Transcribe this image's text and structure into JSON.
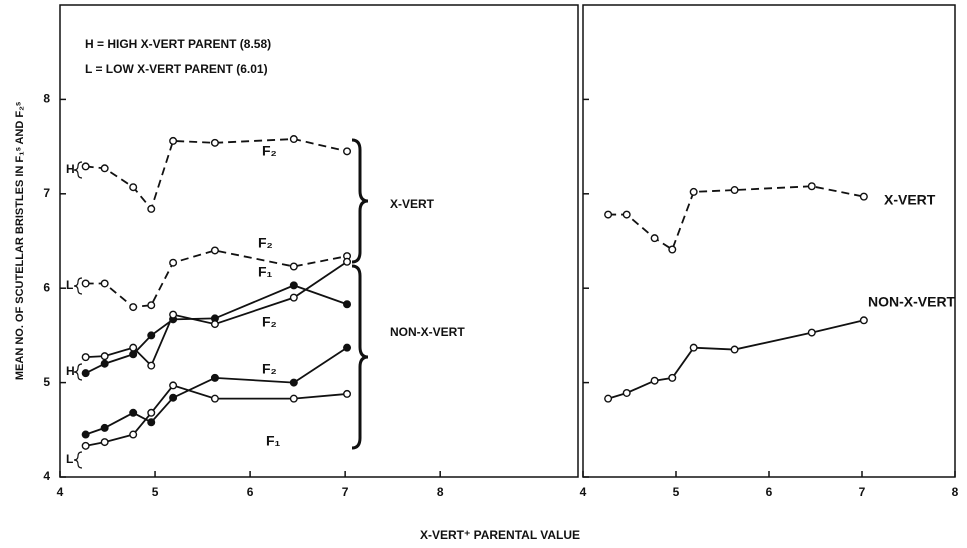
{
  "chart_data": [
    {
      "type": "line",
      "ylabel": "MEAN NO. OF SCUTELLAR BRISTLES IN F₁ˢ AND F₂ˢ",
      "xlabel": "X-VERT⁺ PARENTAL VALUE",
      "notes": [
        "H = HIGH X-VERT PARENT (8.58)",
        "L = LOW X-VERT PARENT (6.01)"
      ],
      "annotations": [
        "H",
        "L",
        "H",
        "L"
      ],
      "groups": [
        "X-VERT",
        "NON-X-VERT"
      ],
      "xlim": [
        4,
        9.45
      ],
      "xticks": [
        4,
        5,
        6,
        7,
        8
      ],
      "ylim": [
        4,
        9
      ],
      "yticks": [
        4,
        5,
        6,
        7,
        8
      ],
      "ytick_labels": true,
      "color": "#111111",
      "x": [
        4.27,
        4.47,
        4.77,
        4.96,
        5.19,
        5.63,
        6.46,
        7.02
      ],
      "series": [
        {
          "name": "F₂",
          "dashed": true,
          "marker": "open",
          "values": [
            7.29,
            7.27,
            7.07,
            6.84,
            7.56,
            7.54,
            7.58,
            7.45
          ]
        },
        {
          "name": "F₂",
          "dashed": true,
          "marker": "open",
          "values": [
            6.05,
            6.05,
            5.8,
            5.82,
            6.27,
            6.4,
            6.23,
            6.34
          ]
        },
        {
          "name": "F₁",
          "dashed": false,
          "marker": "filled",
          "values": [
            5.1,
            5.2,
            5.3,
            5.5,
            5.67,
            5.68,
            6.03,
            5.83
          ]
        },
        {
          "name": "F₂",
          "dashed": false,
          "marker": "open",
          "values": [
            5.27,
            5.28,
            5.37,
            5.18,
            5.72,
            5.62,
            5.9,
            6.28
          ]
        },
        {
          "name": "F₂",
          "dashed": false,
          "marker": "filled",
          "values": [
            4.45,
            4.52,
            4.68,
            4.58,
            4.84,
            5.05,
            5.0,
            5.37
          ]
        },
        {
          "name": "F₁",
          "dashed": false,
          "marker": "open",
          "values": [
            4.33,
            4.37,
            4.45,
            4.68,
            4.97,
            4.83,
            4.83,
            4.88
          ]
        }
      ]
    },
    {
      "type": "line",
      "xlim": [
        4,
        8
      ],
      "xticks": [
        4,
        5,
        6,
        7,
        8
      ],
      "ylim": [
        4,
        9
      ],
      "yticks": [
        4,
        5,
        6,
        7,
        8
      ],
      "ytick_labels": false,
      "color": "#111111",
      "x": [
        4.27,
        4.47,
        4.77,
        4.96,
        5.19,
        5.63,
        6.46,
        7.02
      ],
      "series": [
        {
          "name": "X-VERT",
          "dashed": true,
          "marker": "open",
          "values": [
            6.78,
            6.78,
            6.53,
            6.41,
            7.02,
            7.04,
            7.08,
            6.97
          ]
        },
        {
          "name": "NON-X-VERT",
          "dashed": false,
          "marker": "open",
          "values": [
            4.83,
            4.89,
            5.02,
            5.05,
            5.37,
            5.35,
            5.53,
            5.66
          ]
        }
      ]
    }
  ]
}
